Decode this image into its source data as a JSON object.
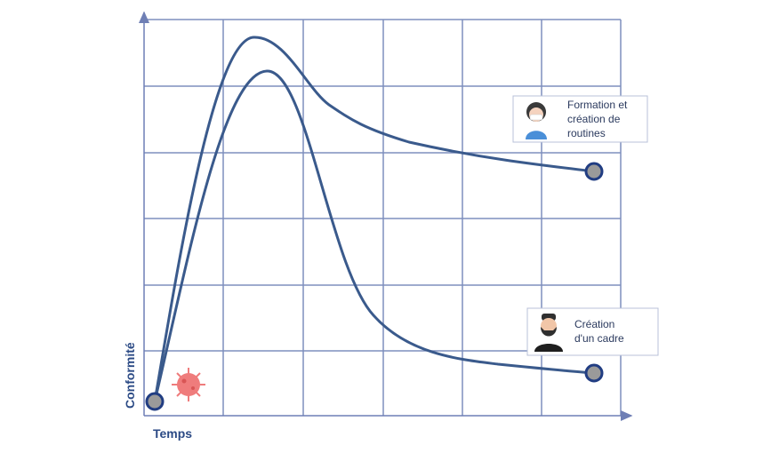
{
  "axes": {
    "y_label": "Conformité",
    "x_label": "Temps"
  },
  "annotations": [
    {
      "lines": [
        "Formation et",
        "création de",
        "routines"
      ]
    },
    {
      "lines": [
        "Création",
        "d'un cadre"
      ]
    }
  ]
}
